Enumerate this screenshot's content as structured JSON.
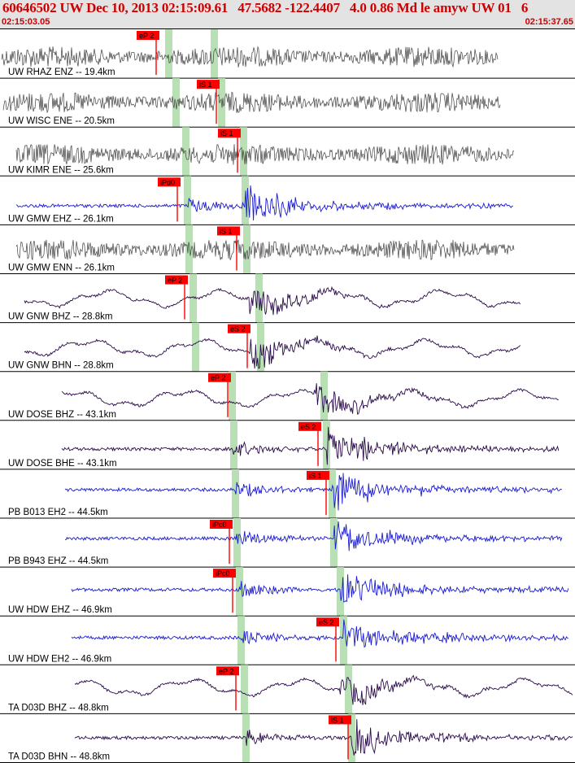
{
  "header": {
    "title": "60646502 UW Dec 10, 2013 02:15:09.61   47.5682 -122.4407   4.0 0.86 Md le amyw UW 01   6",
    "start_time": "02:15:03.05",
    "end_time": "02:15:37.65"
  },
  "colors": {
    "header_bg": "#e3e3e3",
    "title_text": "#cc0000",
    "pick_box": "#ff0000",
    "window_band": "#b9e0b4",
    "trace_dark": "#404040",
    "trace_blue": "#1a1ad2",
    "trace_navy": "#2a0a4a"
  },
  "traces": [
    {
      "label": "UW RHAZ ENZ -- 19.4km",
      "color": "dark",
      "kind": "noise",
      "pick": "eP 2"
    },
    {
      "label": "UW WISC ENE -- 20.5km",
      "color": "dark",
      "kind": "noise",
      "pick": "iS 1"
    },
    {
      "label": "UW KIMR ENE -- 25.6km",
      "color": "dark",
      "kind": "noise",
      "pick": "iS 1"
    },
    {
      "label": "UW GMW EHZ -- 26.1km",
      "color": "blue",
      "kind": "quake",
      "pick": "iPd0"
    },
    {
      "label": "UW GMW ENN -- 26.1km",
      "color": "dark",
      "kind": "noise",
      "pick": "iS 1"
    },
    {
      "label": "UW GNW BHZ -- 28.8km",
      "color": "navy",
      "kind": "wave",
      "pick": "eP 2"
    },
    {
      "label": "UW GNW BHN -- 28.8km",
      "color": "navy",
      "kind": "wave",
      "pick": "eS 2"
    },
    {
      "label": "UW DOSE BHZ -- 43.1km",
      "color": "navy",
      "kind": "wave",
      "pick": "eP 2"
    },
    {
      "label": "UW DOSE BHE -- 43.1km",
      "color": "navy",
      "kind": "quake",
      "pick": "eS 2"
    },
    {
      "label": "PB B013 EH2 -- 44.5km",
      "color": "blue",
      "kind": "quake",
      "pick": "iS 1"
    },
    {
      "label": "PB B943 EHZ -- 44.5km",
      "color": "blue",
      "kind": "quake",
      "pick": "iPc0"
    },
    {
      "label": "UW HDW EHZ -- 46.9km",
      "color": "blue",
      "kind": "quake",
      "pick": "iPc0"
    },
    {
      "label": "UW HDW EH2 -- 46.9km",
      "color": "blue",
      "kind": "quake",
      "pick": "eS 2"
    },
    {
      "label": "TA D03D BHZ -- 48.8km",
      "color": "navy",
      "kind": "wave",
      "pick": "eP 2"
    },
    {
      "label": "TA D03D BHN -- 48.8km",
      "color": "navy",
      "kind": "quake",
      "pick": "iS 1"
    }
  ]
}
